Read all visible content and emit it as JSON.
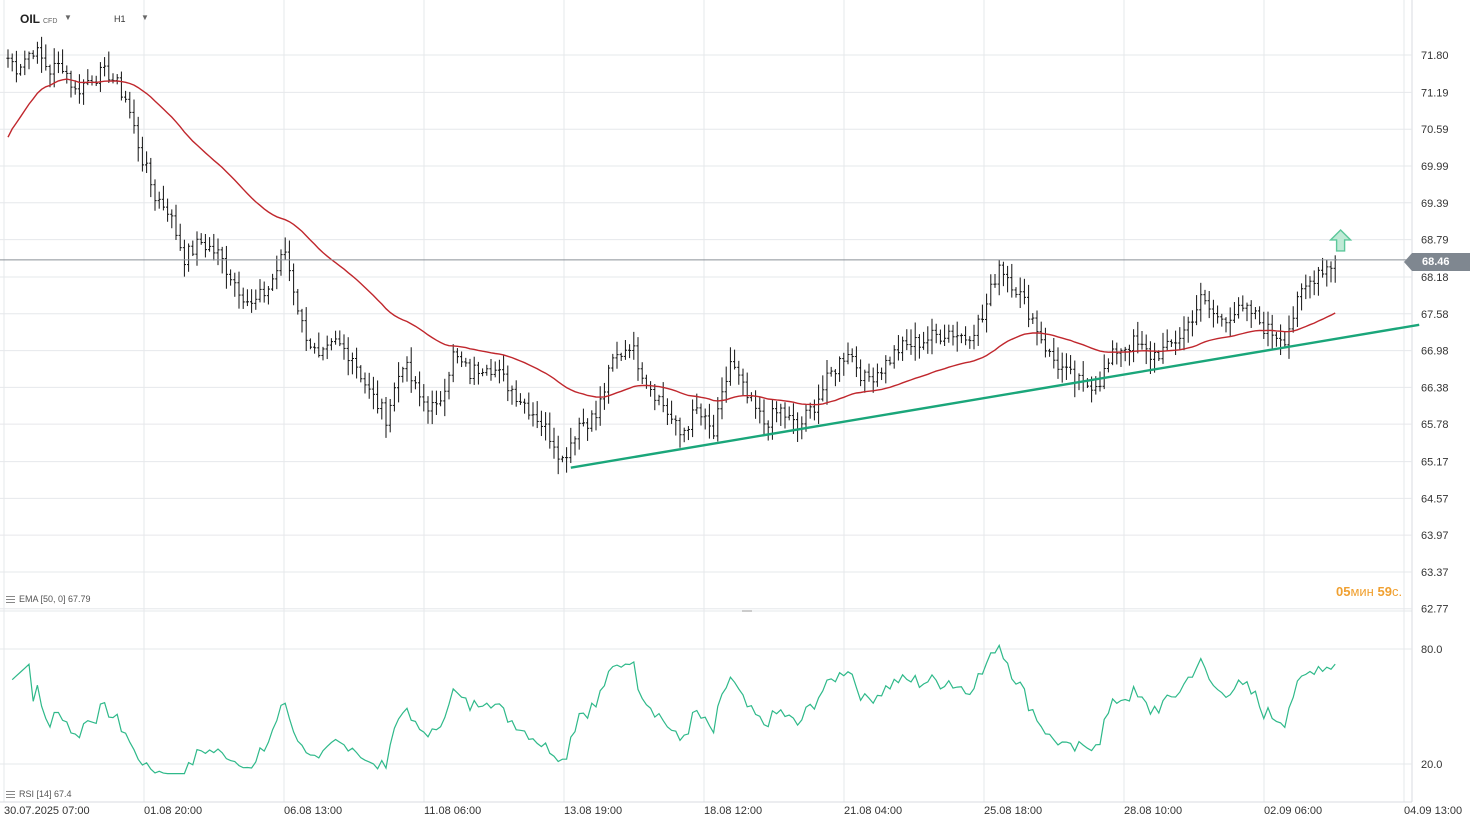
{
  "header": {
    "symbol": "OIL",
    "symbol_suffix": "CFD",
    "timeframe": "H1"
  },
  "indicators": {
    "ema_label": "EMA [50, 0] 67.79",
    "rsi_label": "RSI [14] 67.4"
  },
  "timer": {
    "min_value": "05",
    "min_unit": "мин",
    "sec_value": "59",
    "sec_unit": "с."
  },
  "current_price": "68.46",
  "colors": {
    "ema": "#c0272d",
    "rsi": "#2fb98a",
    "trendline": "#1aa67a",
    "arrow": "#5cc79a",
    "candles": "#111111",
    "grid": "#e6e8eb"
  },
  "chart_data": {
    "type": "ohlc",
    "instrument": "OIL",
    "timeframe": "H1",
    "price_ticks": [
      71.8,
      71.19,
      70.59,
      69.99,
      69.39,
      68.79,
      68.18,
      67.58,
      66.98,
      66.38,
      65.78,
      65.17,
      64.57,
      63.97,
      63.37,
      62.77
    ],
    "price_tick_labels": [
      "71.80",
      "71.19",
      "70.59",
      "69.99",
      "69.39",
      "68.79",
      "68.18",
      "67.58",
      "66.98",
      "66.38",
      "65.78",
      "65.17",
      "64.57",
      "63.97",
      "63.37",
      "62.77"
    ],
    "x_tick_labels": [
      "30.07.2025  07:00",
      "01.08  20:00",
      "06.08  13:00",
      "11.08  06:00",
      "13.08  19:00",
      "18.08  12:00",
      "21.08  04:00",
      "25.08  18:00",
      "28.08  10:00",
      "02.09  06:00",
      "04.09  13:00"
    ],
    "last_price": 68.46,
    "price_anchors": [
      [
        0,
        71.75
      ],
      [
        2,
        71.6
      ],
      [
        6,
        71.9
      ],
      [
        10,
        71.55
      ],
      [
        13,
        71.65
      ],
      [
        16,
        71.2
      ],
      [
        20,
        71.45
      ],
      [
        24,
        71.5
      ],
      [
        28,
        71.1
      ],
      [
        32,
        70.1
      ],
      [
        35,
        69.5
      ],
      [
        38,
        69.3
      ],
      [
        42,
        68.5
      ],
      [
        46,
        68.75
      ],
      [
        50,
        68.55
      ],
      [
        54,
        68.1
      ],
      [
        58,
        67.7
      ],
      [
        62,
        68.0
      ],
      [
        66,
        68.6
      ],
      [
        70,
        67.4
      ],
      [
        74,
        66.8
      ],
      [
        78,
        67.1
      ],
      [
        82,
        66.9
      ],
      [
        86,
        66.3
      ],
      [
        90,
        65.9
      ],
      [
        94,
        66.8
      ],
      [
        98,
        66.2
      ],
      [
        102,
        66.0
      ],
      [
        106,
        66.9
      ],
      [
        110,
        66.6
      ],
      [
        114,
        66.8
      ],
      [
        118,
        66.5
      ],
      [
        122,
        66.2
      ],
      [
        126,
        65.9
      ],
      [
        130,
        65.5
      ],
      [
        132,
        65.2
      ],
      [
        136,
        65.8
      ],
      [
        140,
        65.9
      ],
      [
        144,
        66.8
      ],
      [
        148,
        67.1
      ],
      [
        152,
        66.5
      ],
      [
        156,
        66.1
      ],
      [
        160,
        65.6
      ],
      [
        164,
        66.0
      ],
      [
        168,
        65.6
      ],
      [
        172,
        66.8
      ],
      [
        176,
        66.2
      ],
      [
        180,
        65.8
      ],
      [
        184,
        66.0
      ],
      [
        188,
        65.7
      ],
      [
        192,
        66.1
      ],
      [
        196,
        66.6
      ],
      [
        200,
        67.0
      ],
      [
        204,
        66.5
      ],
      [
        208,
        66.7
      ],
      [
        212,
        67.0
      ],
      [
        216,
        67.1
      ],
      [
        220,
        67.2
      ],
      [
        224,
        67.3
      ],
      [
        228,
        67.2
      ],
      [
        232,
        67.5
      ],
      [
        236,
        68.4
      ],
      [
        240,
        68.0
      ],
      [
        244,
        67.5
      ],
      [
        248,
        66.9
      ],
      [
        252,
        66.6
      ],
      [
        256,
        66.4
      ],
      [
        260,
        66.5
      ],
      [
        264,
        67.0
      ],
      [
        268,
        67.1
      ],
      [
        272,
        66.9
      ],
      [
        276,
        67.0
      ],
      [
        280,
        67.3
      ],
      [
        284,
        67.8
      ],
      [
        288,
        67.5
      ],
      [
        292,
        67.6
      ],
      [
        296,
        67.6
      ],
      [
        300,
        67.3
      ],
      [
        304,
        67.2
      ],
      [
        308,
        67.9
      ],
      [
        312,
        68.3
      ],
      [
        316,
        68.4
      ]
    ],
    "ema_period": 50,
    "ema_last": 67.79,
    "rsi_period": 14,
    "rsi_last": 67.4,
    "rsi_ticks": [
      80.0,
      20.0
    ],
    "rsi_tick_labels": [
      "80.0",
      "20.0"
    ],
    "annotations": [
      {
        "type": "trendline",
        "from": {
          "bar": 134,
          "price": 65.07
        },
        "to": {
          "bar": 336,
          "price": 67.4
        }
      },
      {
        "type": "horizontal_line",
        "price": 68.46
      },
      {
        "type": "up_arrow",
        "bar": 318,
        "price": 68.8
      }
    ]
  }
}
